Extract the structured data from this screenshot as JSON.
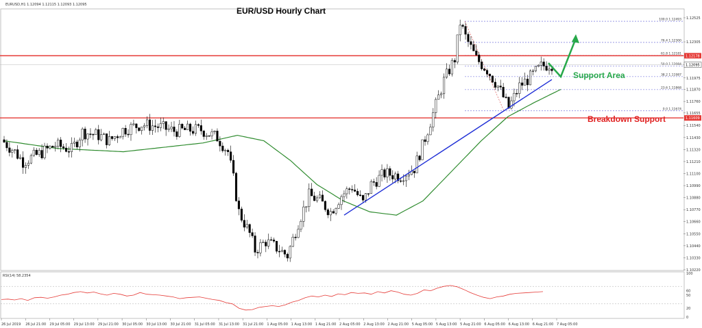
{
  "header": {
    "symbol_line": "EURUSD,H1  1.12094 1.12115 1.12093 1.12095"
  },
  "colors": {
    "bull": "#ffffff",
    "bear": "#000000",
    "ma": "#2e8b2e",
    "trendline": "#1f2fd6",
    "hline": "#e53935",
    "fib": "#5b5bd6",
    "annotation_green": "#27a84a",
    "annotation_red": "#e02020",
    "rsi_line": "#e53935"
  },
  "chart_data": [
    {
      "type": "candlestick",
      "title": "EUR/USD Hourly Chart",
      "price_ticks": [
        "1.12525",
        "1.12305",
        "1.12178",
        "1.12095",
        "1.11975",
        "1.11870",
        "1.11760",
        "1.11655",
        "1.11540",
        "1.11430",
        "1.11320",
        "1.11210",
        "1.11100",
        "1.10990",
        "1.10880",
        "1.10770",
        "1.10660",
        "1.10550",
        "1.10440",
        "1.10330",
        "1.10220"
      ],
      "ylim": [
        1.1022,
        1.126
      ],
      "time_ticks": [
        "26 Jul 2019",
        "26 Jul 21:00",
        "29 Jul 05:00",
        "29 Jul 13:00",
        "29 Jul 21:00",
        "30 Jul 05:00",
        "30 Jul 13:00",
        "30 Jul 21:00",
        "31 Jul 05:00",
        "31 Jul 13:00",
        "31 Jul 21:00",
        "1 Aug 05:00",
        "1 Aug 13:00",
        "1 Aug 21:00",
        "2 Aug 05:00",
        "2 Aug 13:00",
        "2 Aug 21:00",
        "5 Aug 05:00",
        "5 Aug 13:00",
        "5 Aug 21:00",
        "6 Aug 05:00",
        "6 Aug 13:00",
        "6 Aug 21:00",
        "7 Aug 05:00"
      ],
      "anchors": [
        {
          "i": 0,
          "p": 1.1141
        },
        {
          "i": 5,
          "p": 1.113
        },
        {
          "i": 8,
          "p": 1.1121
        },
        {
          "i": 14,
          "p": 1.1128
        },
        {
          "i": 20,
          "p": 1.1136
        },
        {
          "i": 26,
          "p": 1.1132
        },
        {
          "i": 30,
          "p": 1.1148
        },
        {
          "i": 36,
          "p": 1.1145
        },
        {
          "i": 40,
          "p": 1.114
        },
        {
          "i": 45,
          "p": 1.115
        },
        {
          "i": 52,
          "p": 1.1155
        },
        {
          "i": 58,
          "p": 1.1153
        },
        {
          "i": 64,
          "p": 1.1149
        },
        {
          "i": 70,
          "p": 1.115
        },
        {
          "i": 74,
          "p": 1.115
        },
        {
          "i": 80,
          "p": 1.1143
        },
        {
          "i": 84,
          "p": 1.113
        },
        {
          "i": 86,
          "p": 1.1105
        },
        {
          "i": 88,
          "p": 1.1075
        },
        {
          "i": 92,
          "p": 1.1055
        },
        {
          "i": 94,
          "p": 1.104
        },
        {
          "i": 98,
          "p": 1.1048
        },
        {
          "i": 102,
          "p": 1.1042
        },
        {
          "i": 106,
          "p": 1.1035
        },
        {
          "i": 110,
          "p": 1.1065
        },
        {
          "i": 114,
          "p": 1.109
        },
        {
          "i": 118,
          "p": 1.1085
        },
        {
          "i": 122,
          "p": 1.1075
        },
        {
          "i": 126,
          "p": 1.109
        },
        {
          "i": 130,
          "p": 1.1098
        },
        {
          "i": 134,
          "p": 1.1083
        },
        {
          "i": 137,
          "p": 1.11
        },
        {
          "i": 142,
          "p": 1.111
        },
        {
          "i": 148,
          "p": 1.1108
        },
        {
          "i": 153,
          "p": 1.1115
        },
        {
          "i": 156,
          "p": 1.1135
        },
        {
          "i": 160,
          "p": 1.1165
        },
        {
          "i": 164,
          "p": 1.1195
        },
        {
          "i": 168,
          "p": 1.1215
        },
        {
          "i": 170,
          "p": 1.1248
        },
        {
          "i": 172,
          "p": 1.1235
        },
        {
          "i": 176,
          "p": 1.1215
        },
        {
          "i": 180,
          "p": 1.1205
        },
        {
          "i": 184,
          "p": 1.119
        },
        {
          "i": 188,
          "p": 1.117
        },
        {
          "i": 192,
          "p": 1.119
        },
        {
          "i": 196,
          "p": 1.1198
        },
        {
          "i": 200,
          "p": 1.1208
        },
        {
          "i": 203,
          "p": 1.121
        }
      ],
      "moving_average": [
        {
          "i": 0,
          "p": 1.114
        },
        {
          "i": 20,
          "p": 1.1133
        },
        {
          "i": 45,
          "p": 1.113
        },
        {
          "i": 75,
          "p": 1.1138
        },
        {
          "i": 88,
          "p": 1.1145
        },
        {
          "i": 98,
          "p": 1.114
        },
        {
          "i": 108,
          "p": 1.1122
        },
        {
          "i": 118,
          "p": 1.11
        },
        {
          "i": 128,
          "p": 1.1085
        },
        {
          "i": 138,
          "p": 1.1075
        },
        {
          "i": 148,
          "p": 1.1072
        },
        {
          "i": 158,
          "p": 1.1085
        },
        {
          "i": 168,
          "p": 1.111
        },
        {
          "i": 180,
          "p": 1.114
        },
        {
          "i": 190,
          "p": 1.1162
        },
        {
          "i": 200,
          "p": 1.1175
        },
        {
          "i": 210,
          "p": 1.1187
        }
      ],
      "horizontal_lines": [
        {
          "label": "Breakdown Support",
          "price": 1.11609,
          "tag": "1.11609"
        },
        {
          "label": "",
          "price": 1.12178,
          "tag": "1.12178"
        }
      ],
      "current_price_tag": "1.12095",
      "fibonacci": [
        {
          "label": "100.0 1.12493",
          "price": 1.12493
        },
        {
          "label": "76.4 1.12300",
          "price": 1.123
        },
        {
          "label": "61.8 1.12181",
          "price": 1.12181
        },
        {
          "label": "50.0 1.12084",
          "price": 1.12084
        },
        {
          "label": "38.2 1.11987",
          "price": 1.11987
        },
        {
          "label": "23.6 1.11868",
          "price": 1.11868
        },
        {
          "label": "0.0 1.11674",
          "price": 1.11674
        }
      ],
      "trendline": {
        "from": {
          "i": 126,
          "p": 1.1072
        },
        "to": {
          "i": 203,
          "p": 1.1196
        }
      },
      "annotations": [
        "Support Area",
        "Breakdown Support"
      ]
    },
    {
      "type": "line",
      "title": "RSI(14) 58.2354",
      "ylim": [
        0,
        100
      ],
      "ticks": [
        "100",
        "60",
        "50",
        "20",
        "0"
      ],
      "levels": [
        30,
        70
      ],
      "values": [
        40,
        41,
        39,
        42,
        38,
        44,
        45,
        43,
        46,
        50,
        52,
        56,
        58,
        55,
        57,
        53,
        50,
        54,
        52,
        48,
        50,
        56,
        52,
        51,
        50,
        48,
        46,
        42,
        44,
        45,
        46,
        43,
        40,
        38,
        33,
        30,
        20,
        16,
        17,
        22,
        24,
        26,
        24,
        28,
        34,
        38,
        44,
        48,
        46,
        50,
        47,
        53,
        51,
        56,
        54,
        55,
        52,
        58,
        55,
        60,
        57,
        52,
        50,
        54,
        62,
        60,
        66,
        70,
        72,
        69,
        63,
        56,
        50,
        45,
        42,
        46,
        48,
        52,
        54,
        55,
        56,
        57,
        58
      ]
    }
  ]
}
